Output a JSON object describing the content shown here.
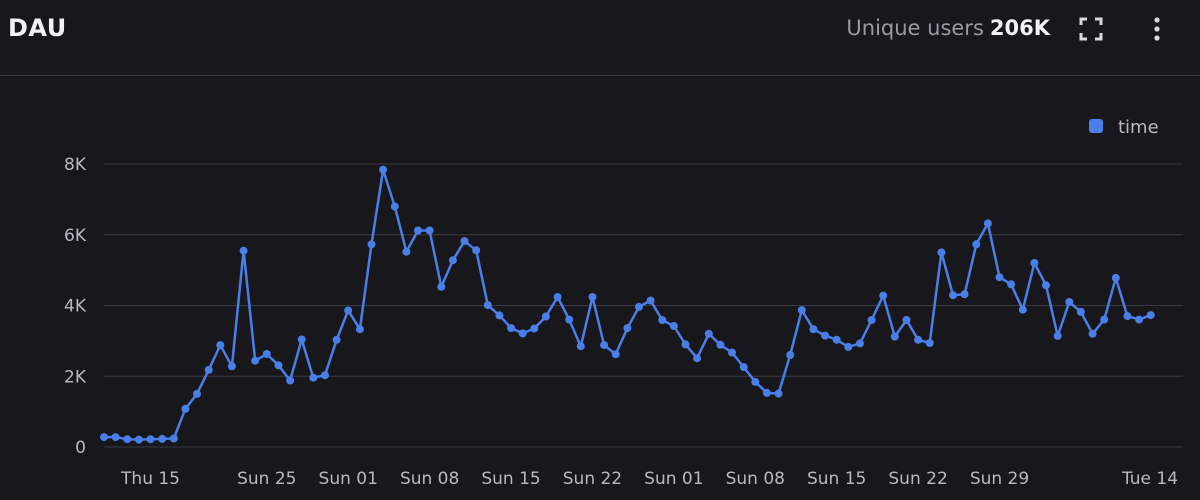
{
  "header": {
    "title": "DAU",
    "stat_label": "Unique users",
    "stat_value": "206K",
    "expand_icon": "expand-icon",
    "more_icon": "more-vertical-icon"
  },
  "colors": {
    "series": "#4a7fe8",
    "grid": "#3a3a46",
    "text": "#b9b9c4"
  },
  "chart_data": {
    "type": "line",
    "title": "DAU",
    "xlabel": "",
    "ylabel": "",
    "ylim": [
      0,
      8000
    ],
    "grid": true,
    "legend": "top-right",
    "y_ticks": [
      {
        "value": 0,
        "label": "0"
      },
      {
        "value": 2000,
        "label": "2K"
      },
      {
        "value": 4000,
        "label": "4K"
      },
      {
        "value": 6000,
        "label": "6K"
      },
      {
        "value": 8000,
        "label": "8K"
      }
    ],
    "x_ticks": [
      {
        "index": 4,
        "label": "Thu 15"
      },
      {
        "index": 14,
        "label": "Sun 25"
      },
      {
        "index": 21,
        "label": "Sun 01"
      },
      {
        "index": 28,
        "label": "Sun 08"
      },
      {
        "index": 35,
        "label": "Sun 15"
      },
      {
        "index": 42,
        "label": "Sun 22"
      },
      {
        "index": 49,
        "label": "Sun 01"
      },
      {
        "index": 56,
        "label": "Sun 08"
      },
      {
        "index": 63,
        "label": "Sun 15"
      },
      {
        "index": 70,
        "label": "Sun 22"
      },
      {
        "index": 77,
        "label": "Sun 29"
      },
      {
        "index": 92,
        "label": "Tue 14"
      }
    ],
    "series": [
      {
        "name": "time",
        "values": [
          280,
          280,
          220,
          210,
          220,
          230,
          240,
          1080,
          1500,
          2180,
          2880,
          2280,
          5550,
          2440,
          2630,
          2310,
          1880,
          3040,
          1960,
          2030,
          3030,
          3860,
          3330,
          5730,
          7840,
          6800,
          5520,
          6120,
          6120,
          4530,
          5280,
          5820,
          5560,
          4010,
          3720,
          3360,
          3210,
          3350,
          3690,
          4240,
          3600,
          2850,
          4240,
          2880,
          2620,
          3360,
          3960,
          4140,
          3590,
          3420,
          2900,
          2510,
          3200,
          2890,
          2670,
          2260,
          1840,
          1530,
          1510,
          2600,
          3870,
          3330,
          3150,
          3030,
          2830,
          2930,
          3590,
          4280,
          3120,
          3590,
          3030,
          2940,
          5500,
          4290,
          4320,
          5730,
          6320,
          4800,
          4600,
          3880,
          5200,
          4570,
          3140,
          4100,
          3820,
          3200,
          3600,
          4780,
          3700,
          3600,
          3730
        ]
      }
    ]
  }
}
